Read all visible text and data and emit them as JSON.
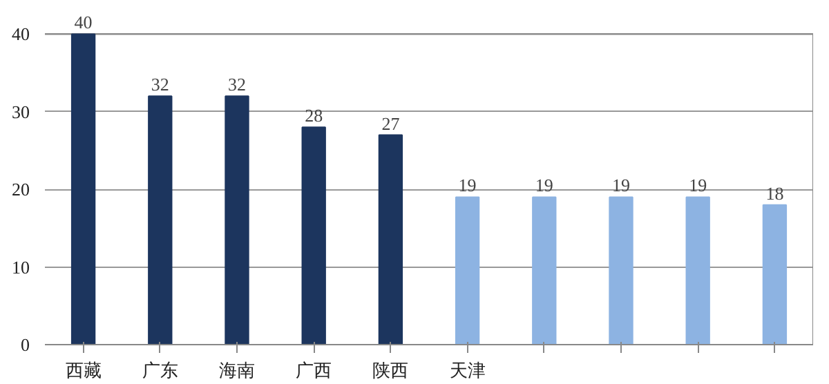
{
  "chart_data": {
    "type": "bar",
    "categories": [
      "西藏",
      "广东",
      "海南",
      "广西",
      "陕西",
      "天津",
      null,
      null,
      null,
      null
    ],
    "values": [
      40,
      32,
      32,
      28,
      27,
      19,
      19,
      19,
      19,
      18
    ],
    "colors": [
      "#1c355e",
      "#1c355e",
      "#1c355e",
      "#1c355e",
      "#1c355e",
      "#8db3e2",
      "#8db3e2",
      "#8db3e2",
      "#8db3e2",
      "#8db3e2"
    ],
    "ylim": [
      0,
      40
    ],
    "yticks": [
      0,
      10,
      20,
      30,
      40
    ],
    "grid": "y",
    "data_labels": true
  }
}
